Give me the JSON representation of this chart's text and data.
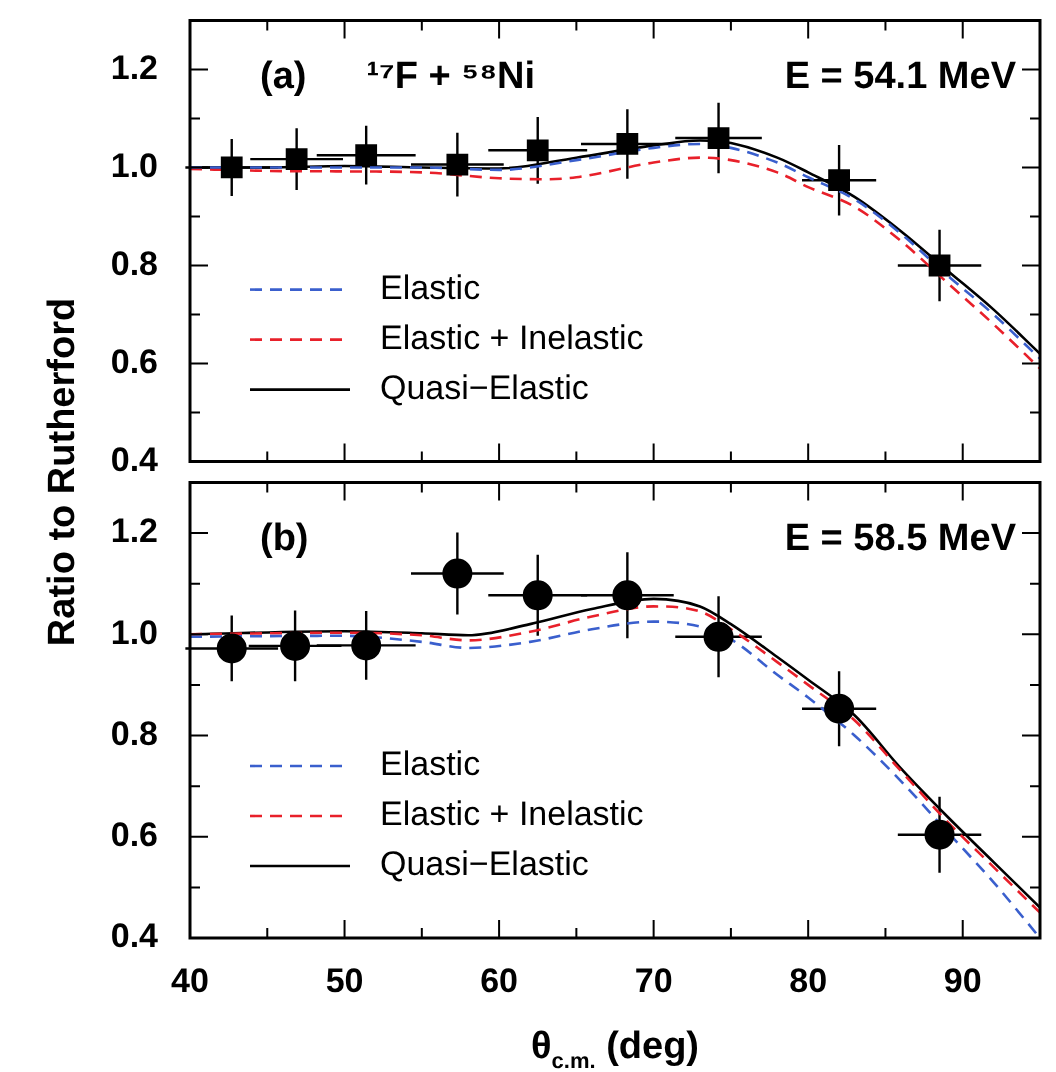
{
  "chart_data": [
    {
      "type": "line",
      "annotations": [
        "(a)",
        "¹⁷F + ⁵⁸Ni",
        "E = 54.1 MeV"
      ],
      "ylabel": "Ratio to Rutherford",
      "xlim": [
        40,
        95
      ],
      "xticks": [
        40,
        {
          "value": 45,
          "label": null
        },
        50,
        {
          "value": 55,
          "label": null
        },
        60,
        {
          "value": 65,
          "label": null
        },
        70,
        {
          "value": 75,
          "label": null
        },
        80,
        {
          "value": 85,
          "label": null
        },
        90
      ],
      "ylim": [
        0.4,
        1.3
      ],
      "yticks": [
        0.4,
        {
          "value": 0.5,
          "label": null
        },
        0.6,
        {
          "value": 0.7,
          "label": null
        },
        0.8,
        {
          "value": 0.9,
          "label": null
        },
        {
          "value": 1.0,
          "label": "1.0"
        },
        {
          "value": 1.1,
          "label": null
        },
        1.2
      ],
      "tick_labels": "y",
      "legend": "bottom left",
      "series": [
        {
          "name": "Elastic",
          "type": "line",
          "line_style": "dashed",
          "color": "#3a5fcd",
          "x": [
            40,
            45,
            50,
            55,
            60,
            65,
            70,
            73,
            75,
            78,
            80,
            83,
            86,
            89,
            92,
            95
          ],
          "values": [
            1.0,
            1.0,
            1.0,
            1.0,
            0.995,
            1.015,
            1.04,
            1.048,
            1.04,
            1.01,
            0.98,
            0.935,
            0.865,
            0.78,
            0.7,
            0.61
          ]
        },
        {
          "name": "Elastic + Inelastic",
          "type": "line",
          "line_style": "dashed",
          "color": "#e8202a",
          "x": [
            40,
            45,
            50,
            55,
            60,
            63,
            65,
            70,
            73,
            75,
            78,
            80,
            83,
            86,
            89,
            92,
            95
          ],
          "values": [
            0.997,
            0.993,
            0.992,
            0.99,
            0.978,
            0.976,
            0.98,
            1.01,
            1.02,
            1.015,
            0.99,
            0.96,
            0.92,
            0.85,
            0.765,
            0.68,
            0.59
          ]
        },
        {
          "name": "Quasi−Elastic",
          "type": "line",
          "line_style": "solid",
          "color": "#000000",
          "x": [
            40,
            45,
            50,
            55,
            60,
            65,
            70,
            73,
            75,
            78,
            80,
            83,
            86,
            89,
            92,
            95
          ],
          "values": [
            1.0,
            1.0,
            1.003,
            1.0,
            0.998,
            1.02,
            1.045,
            1.055,
            1.05,
            1.02,
            0.99,
            0.94,
            0.87,
            0.79,
            0.71,
            0.62
          ]
        },
        {
          "type": "scatter",
          "marker": "square",
          "color": "#000000",
          "x": [
            42.7,
            46.9,
            51.4,
            57.3,
            62.5,
            68.3,
            74.2,
            82.0,
            88.5
          ],
          "values": [
            1.0,
            1.017,
            1.025,
            1.006,
            1.035,
            1.048,
            1.06,
            0.974,
            0.8
          ],
          "errors": [
            0.058,
            0.063,
            0.06,
            0.065,
            0.068,
            0.071,
            0.072,
            0.072,
            0.073
          ],
          "xerrors": [
            3,
            3,
            3.2,
            3,
            3.2,
            3,
            2.8,
            2.4,
            2.7
          ]
        }
      ]
    },
    {
      "type": "line",
      "annotations": [
        "(b)",
        "E = 58.5 MeV"
      ],
      "xlabel": "θ$_{c.m.}$ (deg)",
      "xlim": [
        40,
        95
      ],
      "xticks": [
        40,
        {
          "value": 45,
          "label": null
        },
        50,
        {
          "value": 55,
          "label": null
        },
        60,
        {
          "value": 65,
          "label": null
        },
        70,
        {
          "value": 75,
          "label": null
        },
        80,
        {
          "value": 85,
          "label": null
        },
        90
      ],
      "ylim": [
        0.4,
        1.3
      ],
      "yticks": [
        0.4,
        {
          "value": 0.5,
          "label": null
        },
        0.6,
        {
          "value": 0.7,
          "label": null
        },
        0.8,
        {
          "value": 0.9,
          "label": null
        },
        {
          "value": 1.0,
          "label": "1.0"
        },
        {
          "value": 1.1,
          "label": null
        },
        1.2
      ],
      "legend": "bottom left",
      "series": [
        {
          "name": "Elastic",
          "type": "line",
          "line_style": "dashed",
          "color": "#3a5fcd",
          "x": [
            40,
            50,
            55,
            58,
            62,
            66,
            70,
            73,
            75,
            78,
            80,
            83,
            86,
            89,
            92,
            95
          ],
          "values": [
            0.995,
            0.997,
            0.985,
            0.973,
            0.985,
            1.01,
            1.025,
            1.015,
            0.99,
            0.92,
            0.875,
            0.8,
            0.71,
            0.61,
            0.51,
            0.4
          ]
        },
        {
          "name": "Elastic + Inelastic",
          "type": "line",
          "line_style": "dashed",
          "color": "#e8202a",
          "x": [
            40,
            50,
            55,
            58,
            62,
            66,
            70,
            73,
            75,
            78,
            80,
            83,
            86,
            89,
            92,
            95
          ],
          "values": [
            1.0,
            1.003,
            0.998,
            0.988,
            1.005,
            1.035,
            1.055,
            1.045,
            1.01,
            0.945,
            0.9,
            0.83,
            0.73,
            0.63,
            0.54,
            0.45
          ]
        },
        {
          "name": "Quasi−Elastic",
          "type": "line",
          "line_style": "solid",
          "color": "#000000",
          "x": [
            40,
            50,
            55,
            58,
            62,
            66,
            70,
            73,
            75,
            78,
            80,
            83,
            86,
            89,
            92,
            95
          ],
          "values": [
            1.0,
            1.006,
            1.002,
            0.998,
            1.02,
            1.05,
            1.07,
            1.055,
            1.02,
            0.955,
            0.91,
            0.84,
            0.735,
            0.64,
            0.55,
            0.46
          ]
        },
        {
          "type": "scatter",
          "marker": "circle",
          "color": "#000000",
          "x": [
            42.7,
            46.8,
            51.4,
            57.3,
            62.5,
            68.3,
            74.2,
            82.0,
            88.5
          ],
          "values": [
            0.972,
            0.977,
            0.978,
            1.12,
            1.077,
            1.077,
            0.995,
            0.853,
            0.604
          ],
          "errors": [
            0.065,
            0.07,
            0.068,
            0.081,
            0.08,
            0.085,
            0.08,
            0.074,
            0.075
          ],
          "xerrors": [
            3,
            3,
            3.2,
            3,
            3.2,
            3,
            2.8,
            2.4,
            2.7
          ]
        }
      ]
    }
  ]
}
